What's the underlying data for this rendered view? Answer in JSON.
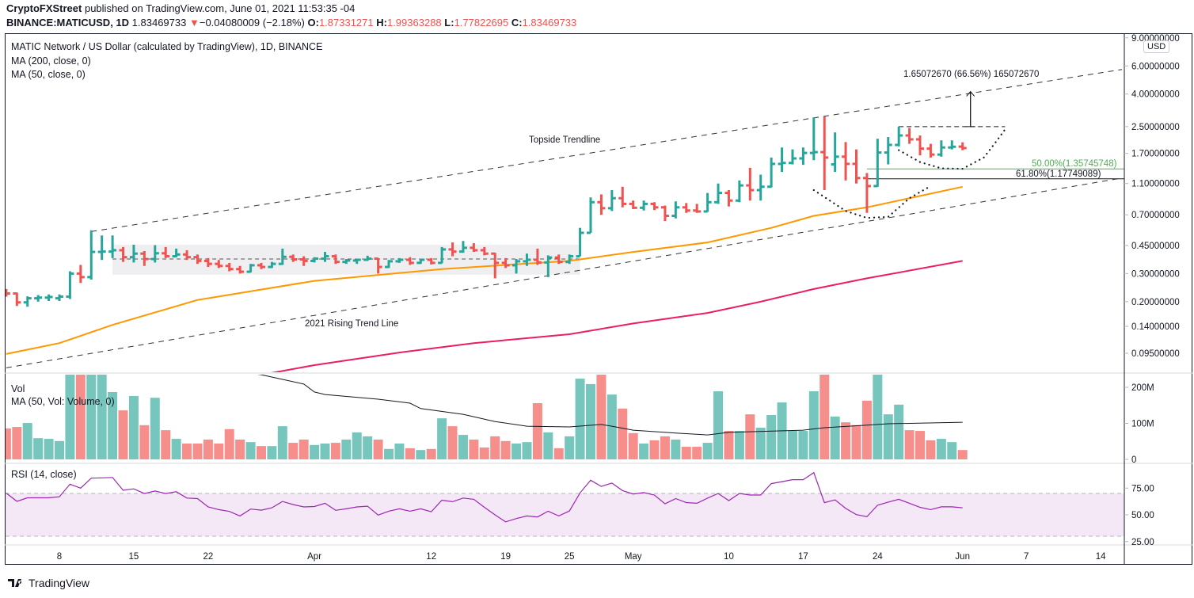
{
  "header": {
    "publisher": "CryptoFXStreet",
    "published_text": " published on TradingView.com, June 01, 2021 11:53:35 -04",
    "symbol": "BINANCE:MATICUSD, 1D",
    "last": "1.83469733",
    "change": "−0.04080009 (−2.18%)",
    "o_label": "O:",
    "o": "1.87331271",
    "h_label": "H:",
    "h": "1.99363288",
    "l_label": "L:",
    "l": "1.77822695",
    "c_label": "C:",
    "c": "1.83469733"
  },
  "legend": {
    "title": "MATIC Network / US Dollar (calculated by TradingView), 1D, BINANCE",
    "ma200": "MA (200, close, 0)",
    "ma50": "MA (50, close, 0)",
    "vol": "Vol",
    "vol_ma": "MA (50, Vol: Volume, 0)",
    "rsi": "RSI (14, close)"
  },
  "currency_badge": "USD",
  "annotations": {
    "topside": "Topside Trendline",
    "rising": "2021 Rising Trend Line",
    "measure": "1.65072670 (66.56%) 165072670",
    "fib50": "50.00%(1.35745748)",
    "fib618": "61.80%(1.17749089)"
  },
  "footer": {
    "brand": "TradingView"
  },
  "colors": {
    "up": "#26a69a",
    "down": "#ef5350",
    "vol_up": "#76c6bd",
    "vol_down": "#f68e8c",
    "ma50": "#ff9800",
    "ma200": "#e91e63",
    "rsi": "#9c27b0",
    "fib50": "#4caf50",
    "fib618": "#131722",
    "vol_ma": "#131722"
  },
  "chart_data": {
    "type": "ohlc",
    "price_scale": "log",
    "price_axis_ticks": [
      "9.00000000",
      "6.00000000",
      "4.00000000",
      "2.50000000",
      "1.70000000",
      "1.10000000",
      "0.70000000",
      "0.45000000",
      "0.30000000",
      "0.20000000",
      "0.14000000",
      "0.09500000"
    ],
    "volume_axis_ticks": [
      {
        "label": "200M",
        "value": 200
      },
      {
        "label": "100M",
        "value": 100
      },
      {
        "label": "0",
        "value": 0
      }
    ],
    "rsi_axis_ticks": [
      {
        "label": "75.00",
        "value": 75
      },
      {
        "label": "50.00",
        "value": 50
      },
      {
        "label": "25.00",
        "value": 25
      }
    ],
    "rsi_band": [
      30,
      70
    ],
    "x_axis_ticks": [
      {
        "label": "8",
        "date": "2021-03-08"
      },
      {
        "label": "15",
        "date": "2021-03-15"
      },
      {
        "label": "22",
        "date": "2021-03-22"
      },
      {
        "label": "Apr",
        "date": "2021-04-01"
      },
      {
        "label": "12",
        "date": "2021-04-12"
      },
      {
        "label": "19",
        "date": "2021-04-19"
      },
      {
        "label": "25",
        "date": "2021-04-25"
      },
      {
        "label": "May",
        "date": "2021-05-01"
      },
      {
        "label": "10",
        "date": "2021-05-10"
      },
      {
        "label": "17",
        "date": "2021-05-17"
      },
      {
        "label": "24",
        "date": "2021-05-24"
      },
      {
        "label": "Jun",
        "date": "2021-06-01"
      },
      {
        "label": "7",
        "date": "2021-06-07"
      },
      {
        "label": "14",
        "date": "2021-06-14"
      }
    ],
    "bars_columns": [
      "date",
      "open",
      "high",
      "low",
      "close",
      "volume_millions",
      "rsi"
    ],
    "bars": [
      [
        "2021-03-03",
        0.232,
        0.24,
        0.215,
        0.225,
        86,
        70.3
      ],
      [
        "2021-03-04",
        0.225,
        0.228,
        0.188,
        0.198,
        90,
        62.7
      ],
      [
        "2021-03-05",
        0.198,
        0.216,
        0.186,
        0.21,
        101,
        65.9
      ],
      [
        "2021-03-06",
        0.21,
        0.22,
        0.2,
        0.212,
        59,
        65.9
      ],
      [
        "2021-03-07",
        0.212,
        0.222,
        0.202,
        0.214,
        57,
        65.9
      ],
      [
        "2021-03-08",
        0.21,
        0.222,
        0.202,
        0.215,
        51,
        66.9
      ],
      [
        "2021-03-09",
        0.215,
        0.31,
        0.208,
        0.3,
        260,
        78.7
      ],
      [
        "2021-03-10",
        0.3,
        0.34,
        0.262,
        0.285,
        290,
        75.0
      ],
      [
        "2021-03-11",
        0.285,
        0.56,
        0.275,
        0.41,
        270,
        84.3
      ],
      [
        "2021-03-12",
        0.41,
        0.52,
        0.365,
        0.412,
        250,
        84.6
      ],
      [
        "2021-03-13",
        0.412,
        0.52,
        0.375,
        0.42,
        187,
        85.0
      ],
      [
        "2021-03-14",
        0.42,
        0.44,
        0.355,
        0.38,
        136,
        73.0
      ],
      [
        "2021-03-15",
        0.38,
        0.455,
        0.352,
        0.4,
        176,
        74.3
      ],
      [
        "2021-03-16",
        0.4,
        0.415,
        0.335,
        0.37,
        95,
        69.9
      ],
      [
        "2021-03-17",
        0.37,
        0.452,
        0.352,
        0.402,
        171,
        72.3
      ],
      [
        "2021-03-18",
        0.402,
        0.44,
        0.375,
        0.385,
        81,
        69.9
      ],
      [
        "2021-03-19",
        0.385,
        0.43,
        0.38,
        0.395,
        57,
        71.6
      ],
      [
        "2021-03-20",
        0.395,
        0.42,
        0.365,
        0.38,
        44,
        65.7
      ],
      [
        "2021-03-21",
        0.38,
        0.395,
        0.345,
        0.36,
        44,
        65.2
      ],
      [
        "2021-03-22",
        0.36,
        0.375,
        0.33,
        0.345,
        55,
        57.4
      ],
      [
        "2021-03-23",
        0.345,
        0.365,
        0.325,
        0.335,
        44,
        54.9
      ],
      [
        "2021-03-24",
        0.335,
        0.35,
        0.31,
        0.32,
        84,
        53.2
      ],
      [
        "2021-03-25",
        0.32,
        0.335,
        0.3,
        0.308,
        55,
        49.0
      ],
      [
        "2021-03-26",
        0.308,
        0.345,
        0.305,
        0.338,
        48,
        55.4
      ],
      [
        "2021-03-27",
        0.338,
        0.35,
        0.32,
        0.33,
        37,
        54.4
      ],
      [
        "2021-03-28",
        0.33,
        0.355,
        0.325,
        0.345,
        37,
        56.6
      ],
      [
        "2021-03-29",
        0.345,
        0.43,
        0.34,
        0.382,
        92,
        62.5
      ],
      [
        "2021-03-30",
        0.382,
        0.395,
        0.355,
        0.368,
        46,
        59.6
      ],
      [
        "2021-03-31",
        0.368,
        0.385,
        0.335,
        0.36,
        55,
        57.4
      ],
      [
        "2021-04-01",
        0.36,
        0.38,
        0.352,
        0.372,
        40,
        57.8
      ],
      [
        "2021-04-02",
        0.372,
        0.41,
        0.355,
        0.385,
        44,
        60.8
      ],
      [
        "2021-04-03",
        0.385,
        0.395,
        0.345,
        0.355,
        46,
        54.2
      ],
      [
        "2021-04-04",
        0.355,
        0.37,
        0.345,
        0.362,
        55,
        55.6
      ],
      [
        "2021-04-05",
        0.362,
        0.372,
        0.345,
        0.366,
        75,
        57.4
      ],
      [
        "2021-04-06",
        0.366,
        0.388,
        0.36,
        0.372,
        64,
        58.1
      ],
      [
        "2021-04-07",
        0.372,
        0.375,
        0.3,
        0.33,
        55,
        49.8
      ],
      [
        "2021-04-08",
        0.33,
        0.365,
        0.325,
        0.358,
        29,
        53.4
      ],
      [
        "2021-04-09",
        0.358,
        0.375,
        0.35,
        0.366,
        44,
        55.6
      ],
      [
        "2021-04-10",
        0.366,
        0.38,
        0.34,
        0.35,
        31,
        53.4
      ],
      [
        "2021-04-11",
        0.35,
        0.372,
        0.345,
        0.366,
        26,
        55.6
      ],
      [
        "2021-04-12",
        0.366,
        0.375,
        0.342,
        0.35,
        29,
        52.9
      ],
      [
        "2021-04-13",
        0.35,
        0.44,
        0.348,
        0.425,
        114,
        63.7
      ],
      [
        "2021-04-14",
        0.425,
        0.47,
        0.385,
        0.412,
        92,
        62.3
      ],
      [
        "2021-04-15",
        0.412,
        0.48,
        0.405,
        0.435,
        68,
        65.7
      ],
      [
        "2021-04-16",
        0.435,
        0.465,
        0.41,
        0.42,
        55,
        64.5
      ],
      [
        "2021-04-17",
        0.42,
        0.44,
        0.39,
        0.4,
        33,
        57.0
      ],
      [
        "2021-04-18",
        0.4,
        0.405,
        0.28,
        0.35,
        64,
        50.0
      ],
      [
        "2021-04-19",
        0.35,
        0.375,
        0.325,
        0.338,
        51,
        43.4
      ],
      [
        "2021-04-20",
        0.338,
        0.37,
        0.3,
        0.358,
        44,
        46.5
      ],
      [
        "2021-04-21",
        0.358,
        0.4,
        0.335,
        0.366,
        48,
        49.0
      ],
      [
        "2021-04-22",
        0.366,
        0.43,
        0.34,
        0.352,
        156,
        48.0
      ],
      [
        "2021-04-23",
        0.352,
        0.39,
        0.285,
        0.378,
        75,
        53.4
      ],
      [
        "2021-04-24",
        0.378,
        0.395,
        0.345,
        0.355,
        31,
        49.0
      ],
      [
        "2021-04-25",
        0.355,
        0.395,
        0.345,
        0.385,
        64,
        53.6
      ],
      [
        "2021-04-26",
        0.385,
        0.58,
        0.385,
        0.54,
        224,
        70.5
      ],
      [
        "2021-04-27",
        0.54,
        0.9,
        0.54,
        0.84,
        209,
        82.4
      ],
      [
        "2021-04-28",
        0.84,
        0.94,
        0.7,
        0.77,
        245,
        76.6
      ],
      [
        "2021-04-29",
        0.77,
        1.0,
        0.74,
        0.89,
        180,
        79.7
      ],
      [
        "2021-04-30",
        0.89,
        1.05,
        0.78,
        0.82,
        141,
        72.7
      ],
      [
        "2021-05-01",
        0.82,
        0.86,
        0.76,
        0.775,
        73,
        69.5
      ],
      [
        "2021-05-02",
        0.775,
        0.86,
        0.745,
        0.82,
        44,
        70.8
      ],
      [
        "2021-05-03",
        0.82,
        0.84,
        0.75,
        0.78,
        53,
        68.5
      ],
      [
        "2021-05-04",
        0.78,
        0.8,
        0.64,
        0.69,
        64,
        60.3
      ],
      [
        "2021-05-05",
        0.69,
        0.85,
        0.665,
        0.78,
        55,
        65.2
      ],
      [
        "2021-05-06",
        0.78,
        0.83,
        0.72,
        0.745,
        35,
        61.5
      ],
      [
        "2021-05-07",
        0.745,
        0.82,
        0.72,
        0.735,
        35,
        60.8
      ],
      [
        "2021-05-08",
        0.735,
        0.96,
        0.73,
        0.84,
        46,
        65.6
      ],
      [
        "2021-05-09",
        0.84,
        1.1,
        0.82,
        0.96,
        189,
        70.0
      ],
      [
        "2021-05-10",
        0.96,
        1.0,
        0.79,
        0.86,
        79,
        63.3
      ],
      [
        "2021-05-11",
        0.86,
        1.15,
        0.84,
        1.07,
        79,
        70.0
      ],
      [
        "2021-05-12",
        1.07,
        1.38,
        0.86,
        1.0,
        125,
        68.5
      ],
      [
        "2021-05-13",
        1.0,
        1.25,
        0.86,
        1.05,
        88,
        68.5
      ],
      [
        "2021-05-14",
        1.05,
        1.6,
        1.04,
        1.46,
        123,
        79.2
      ],
      [
        "2021-05-15",
        1.46,
        1.85,
        1.3,
        1.48,
        158,
        81.0
      ],
      [
        "2021-05-16",
        1.48,
        1.8,
        1.45,
        1.58,
        79,
        82.9
      ],
      [
        "2021-05-17",
        1.58,
        1.85,
        1.44,
        1.71,
        79,
        82.9
      ],
      [
        "2021-05-18",
        1.71,
        2.86,
        1.54,
        1.73,
        189,
        89.5
      ],
      [
        "2021-05-19",
        1.73,
        2.9,
        1.0,
        1.6,
        250,
        61.4
      ],
      [
        "2021-05-20",
        1.45,
        2.3,
        1.3,
        1.62,
        119,
        64.0
      ],
      [
        "2021-05-21",
        1.62,
        2.0,
        1.15,
        1.46,
        103,
        56.0
      ],
      [
        "2021-05-22",
        1.46,
        1.8,
        1.1,
        1.19,
        95,
        50.2
      ],
      [
        "2021-05-23",
        1.19,
        1.28,
        0.72,
        1.06,
        163,
        48.2
      ],
      [
        "2021-05-24",
        1.06,
        2.1,
        1.05,
        1.72,
        250,
        59.0
      ],
      [
        "2021-05-25",
        1.72,
        2.15,
        1.45,
        1.92,
        125,
        61.9
      ],
      [
        "2021-05-26",
        1.92,
        2.5,
        1.88,
        2.2,
        152,
        64.5
      ],
      [
        "2021-05-27",
        2.2,
        2.45,
        1.95,
        2.08,
        81,
        60.8
      ],
      [
        "2021-05-28",
        2.08,
        2.2,
        1.65,
        1.82,
        79,
        57.0
      ],
      [
        "2021-05-29",
        1.82,
        1.95,
        1.6,
        1.67,
        53,
        54.9
      ],
      [
        "2021-05-30",
        1.67,
        2.05,
        1.62,
        1.85,
        57,
        57.5
      ],
      [
        "2021-05-31",
        1.85,
        2.05,
        1.8,
        1.87,
        48,
        57.5
      ],
      [
        "2021-06-01",
        1.87331271,
        1.99363288,
        1.77822695,
        1.83469733,
        26,
        56.6
      ]
    ],
    "ma50": [
      [
        "2021-03-03",
        0.094
      ],
      [
        "2021-03-08",
        0.11
      ],
      [
        "2021-03-13",
        0.143
      ],
      [
        "2021-03-21",
        0.205
      ],
      [
        "2021-04-01",
        0.27
      ],
      [
        "2021-04-13",
        0.32
      ],
      [
        "2021-04-25",
        0.36
      ],
      [
        "2021-05-01",
        0.41
      ],
      [
        "2021-05-08",
        0.47
      ],
      [
        "2021-05-14",
        0.58
      ],
      [
        "2021-05-18",
        0.69
      ],
      [
        "2021-05-23",
        0.78
      ],
      [
        "2021-06-01",
        1.05
      ]
    ],
    "ma200": [
      [
        "2021-03-24",
        0.064
      ],
      [
        "2021-04-01",
        0.08
      ],
      [
        "2021-04-09",
        0.096
      ],
      [
        "2021-04-16",
        0.11
      ],
      [
        "2021-04-25",
        0.125
      ],
      [
        "2021-05-01",
        0.146
      ],
      [
        "2021-05-08",
        0.17
      ],
      [
        "2021-05-13",
        0.2
      ],
      [
        "2021-05-18",
        0.24
      ],
      [
        "2021-05-23",
        0.28
      ],
      [
        "2021-06-01",
        0.36
      ]
    ],
    "volume_ma50": [
      [
        "2021-03-20",
        260
      ],
      [
        "2021-03-27",
        235
      ],
      [
        "2021-03-31",
        209
      ],
      [
        "2021-04-01",
        187
      ],
      [
        "2021-04-02",
        180
      ],
      [
        "2021-04-07",
        167
      ],
      [
        "2021-04-10",
        156
      ],
      [
        "2021-04-11",
        141
      ],
      [
        "2021-04-15",
        125
      ],
      [
        "2021-04-18",
        105
      ],
      [
        "2021-04-21",
        92
      ],
      [
        "2021-04-25",
        90
      ],
      [
        "2021-04-28",
        97
      ],
      [
        "2021-04-29",
        92
      ],
      [
        "2021-05-01",
        81
      ],
      [
        "2021-05-05",
        73
      ],
      [
        "2021-05-08",
        68
      ],
      [
        "2021-05-10",
        75
      ],
      [
        "2021-05-17",
        81
      ],
      [
        "2021-05-19",
        88
      ],
      [
        "2021-05-23",
        95
      ],
      [
        "2021-05-25",
        99
      ],
      [
        "2021-06-01",
        103
      ]
    ],
    "drawings": {
      "topside_trendline": [
        [
          "2021-03-11",
          0.55
        ],
        [
          "2021-06-16",
          5.7
        ]
      ],
      "rising_trendline": [
        [
          "2021-03-03",
          0.077
        ],
        [
          "2021-06-16",
          1.19
        ]
      ],
      "consolidation_box": {
        "from": "2021-03-13",
        "to": "2021-04-26",
        "low": 0.295,
        "high": 0.455,
        "mid": 0.37
      },
      "fib_50": {
        "from": "2021-05-23",
        "value": 1.35745748
      },
      "fib_618": {
        "from": "2021-05-23",
        "value": 1.17749089
      },
      "measure": {
        "date": "2021-06-01",
        "from": 2.5,
        "to": 4.15
      },
      "rim": {
        "from": "2021-05-26",
        "to": "2021-06-05",
        "value": 2.5
      },
      "cup_small": [
        [
          "2021-05-26",
          1.78
        ],
        [
          "2021-05-28",
          1.5
        ],
        [
          "2021-05-30",
          1.37
        ],
        [
          "2021-06-01",
          1.36
        ],
        [
          "2021-06-03",
          1.6
        ],
        [
          "2021-06-04",
          1.95
        ],
        [
          "2021-06-05",
          2.4
        ]
      ],
      "cup_large": [
        [
          "2021-05-18",
          1.0
        ],
        [
          "2021-05-21",
          0.74
        ],
        [
          "2021-05-23",
          0.67
        ],
        [
          "2021-05-25",
          0.68
        ],
        [
          "2021-05-27",
          0.89
        ],
        [
          "2021-05-29",
          1.06
        ]
      ]
    }
  }
}
